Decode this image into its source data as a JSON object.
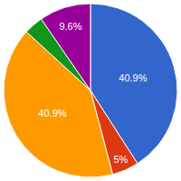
{
  "chart_data": {
    "type": "pie",
    "values": [
      40.9,
      5,
      40.9,
      3.6,
      9.6
    ],
    "value_labels": [
      "40.9%",
      "5%",
      "40.9%",
      null,
      "9.6%"
    ],
    "colors": [
      "#3366cc",
      "#dc3912",
      "#ff9900",
      "#109618",
      "#990099"
    ],
    "data_labels": true
  }
}
